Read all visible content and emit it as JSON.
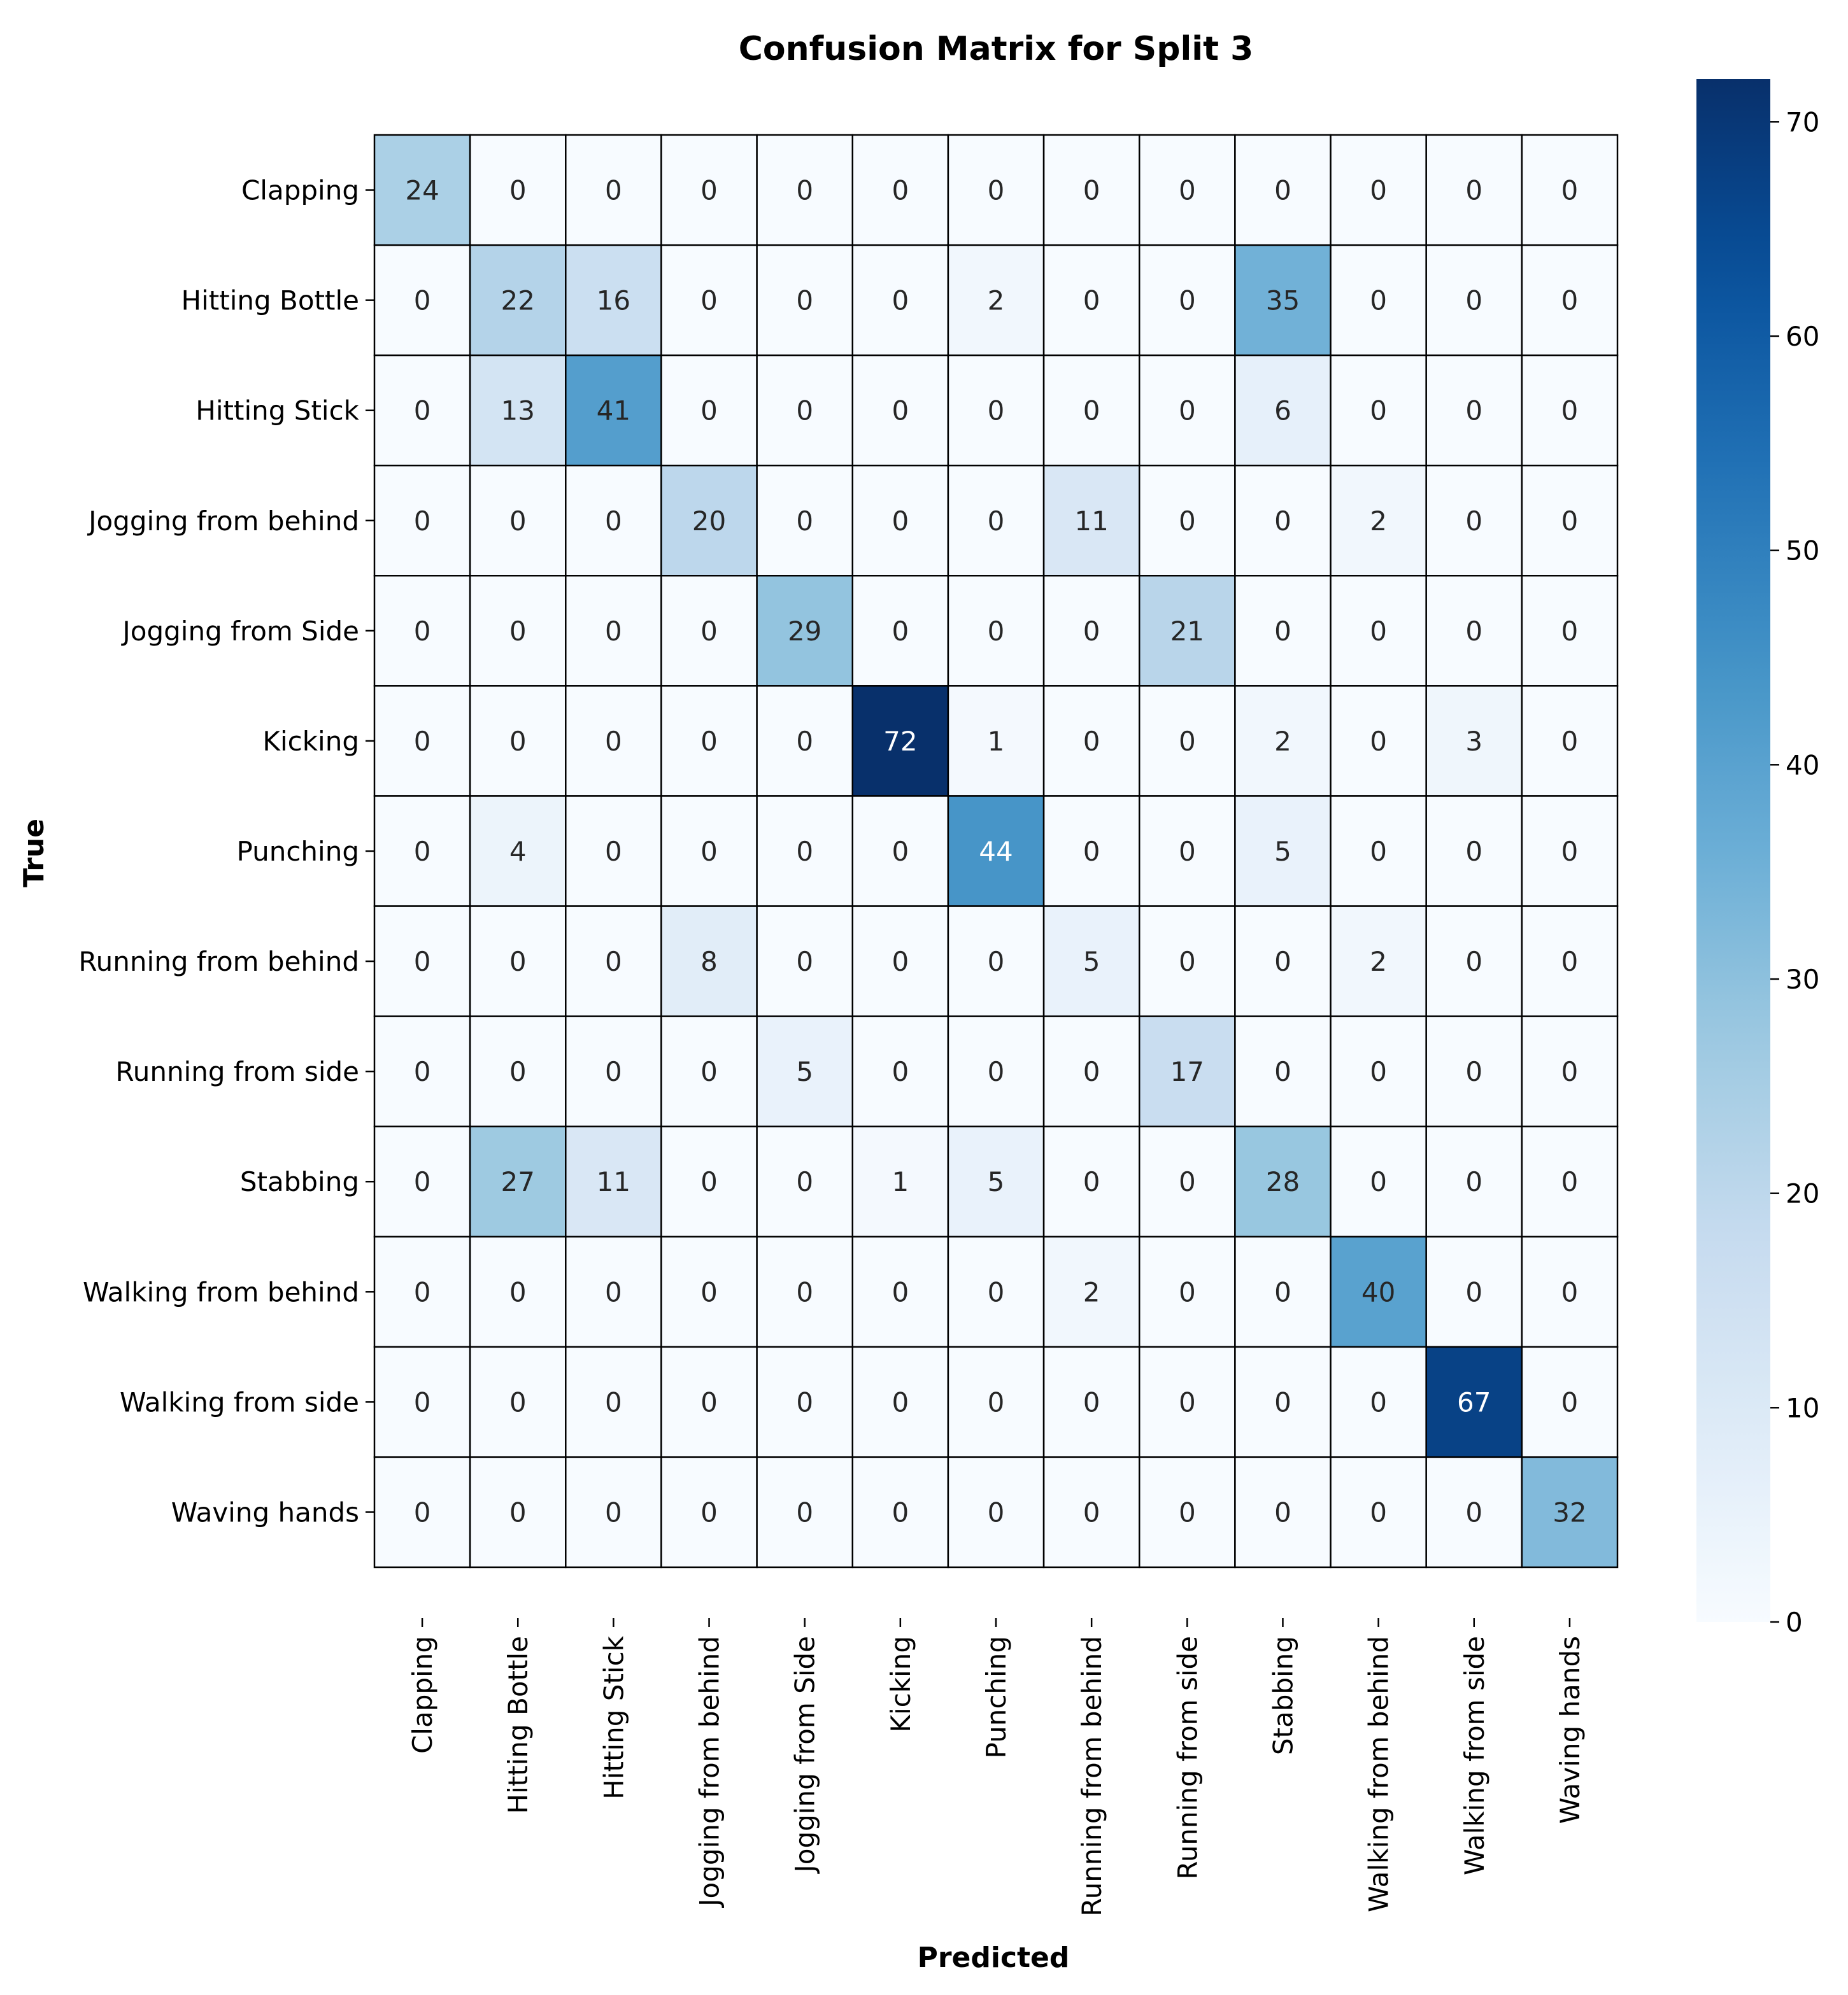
{
  "chart_data": {
    "type": "heatmap",
    "title": "Confusion Matrix for Split 3",
    "xlabel": "Predicted",
    "ylabel": "True",
    "colormap": "Blues",
    "vmin": 0,
    "vmax": 72,
    "colorbar_ticks": [
      0,
      10,
      20,
      30,
      40,
      50,
      60,
      70
    ],
    "labels": [
      "Clapping",
      "Hitting Bottle",
      "Hitting Stick",
      "Jogging from behind",
      "Jogging from Side",
      "Kicking",
      "Punching",
      "Running from behind",
      "Running from side",
      "Stabbing",
      "Walking from behind",
      "Walking from side",
      "Waving hands"
    ],
    "matrix": [
      [
        24,
        0,
        0,
        0,
        0,
        0,
        0,
        0,
        0,
        0,
        0,
        0,
        0
      ],
      [
        0,
        22,
        16,
        0,
        0,
        0,
        2,
        0,
        0,
        35,
        0,
        0,
        0
      ],
      [
        0,
        13,
        41,
        0,
        0,
        0,
        0,
        0,
        0,
        6,
        0,
        0,
        0
      ],
      [
        0,
        0,
        0,
        20,
        0,
        0,
        0,
        11,
        0,
        0,
        2,
        0,
        0
      ],
      [
        0,
        0,
        0,
        0,
        29,
        0,
        0,
        0,
        21,
        0,
        0,
        0,
        0
      ],
      [
        0,
        0,
        0,
        0,
        0,
        72,
        1,
        0,
        0,
        2,
        0,
        3,
        0
      ],
      [
        0,
        4,
        0,
        0,
        0,
        0,
        44,
        0,
        0,
        5,
        0,
        0,
        0
      ],
      [
        0,
        0,
        0,
        8,
        0,
        0,
        0,
        5,
        0,
        0,
        2,
        0,
        0
      ],
      [
        0,
        0,
        0,
        0,
        5,
        0,
        0,
        0,
        17,
        0,
        0,
        0,
        0
      ],
      [
        0,
        27,
        11,
        0,
        0,
        1,
        5,
        0,
        0,
        28,
        0,
        0,
        0
      ],
      [
        0,
        0,
        0,
        0,
        0,
        0,
        0,
        2,
        0,
        0,
        40,
        0,
        0
      ],
      [
        0,
        0,
        0,
        0,
        0,
        0,
        0,
        0,
        0,
        0,
        0,
        67,
        0
      ],
      [
        0,
        0,
        0,
        0,
        0,
        0,
        0,
        0,
        0,
        0,
        0,
        0,
        32
      ]
    ]
  }
}
